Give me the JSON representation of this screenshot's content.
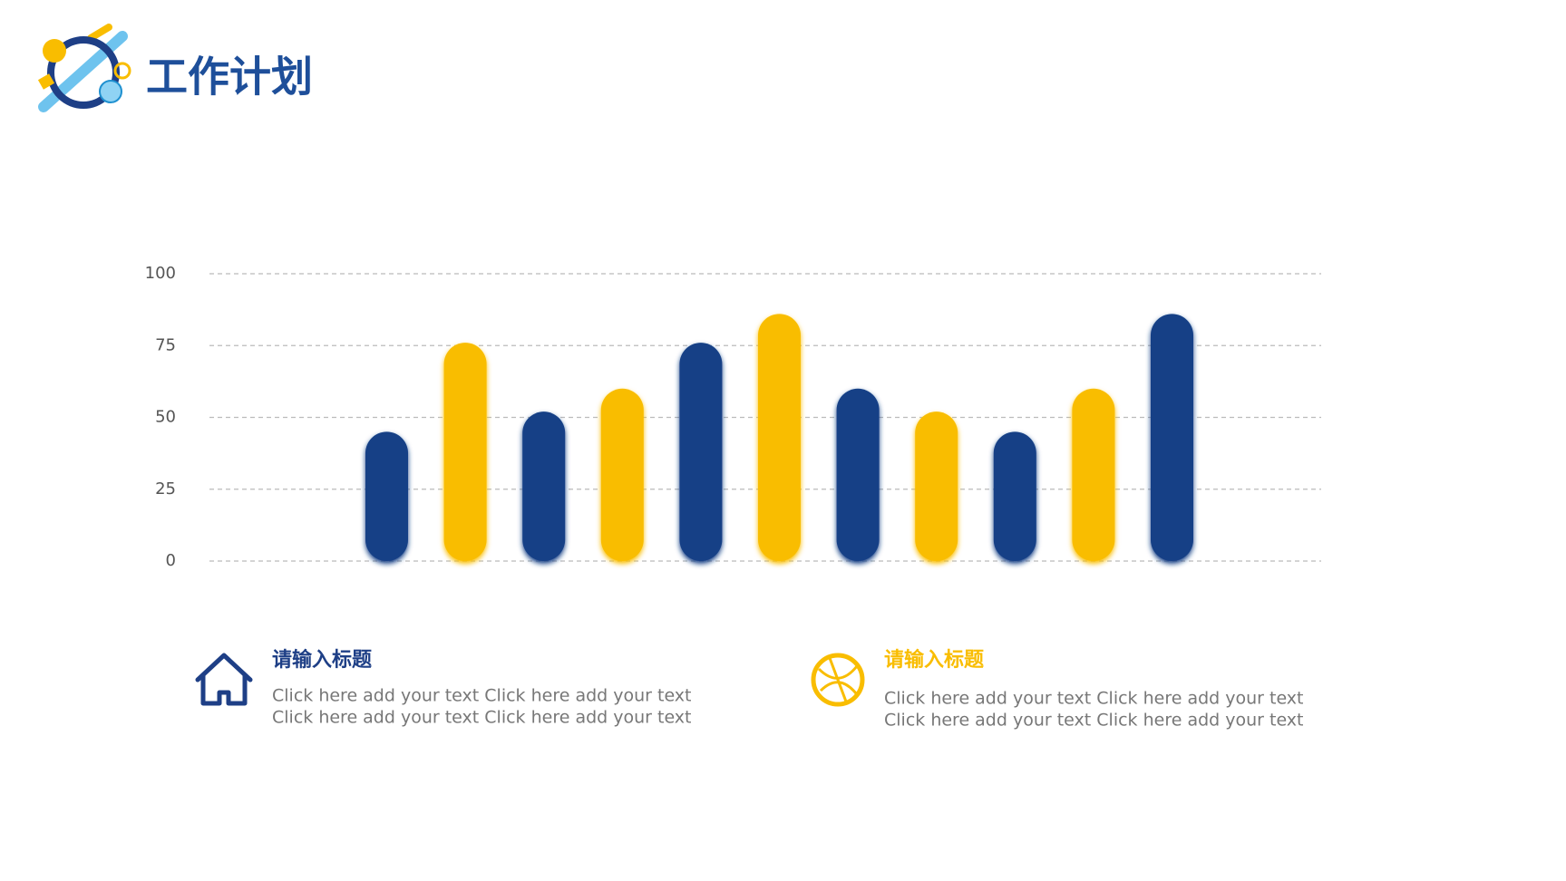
{
  "header": {
    "title": "工作计划"
  },
  "chart_data": {
    "type": "bar",
    "categories": [
      null,
      null,
      null,
      null,
      null,
      null,
      null,
      null,
      null,
      null,
      null
    ],
    "values": [
      45,
      76,
      52,
      60,
      76,
      86,
      60,
      52,
      45,
      60,
      86
    ],
    "colors": [
      "#143f86",
      "#f9bd00",
      "#143f86",
      "#f9bd00",
      "#143f86",
      "#f9bd00",
      "#143f86",
      "#f9bd00",
      "#143f86",
      "#f9bd00",
      "#143f86"
    ],
    "ylim": [
      0,
      100
    ],
    "yticks": [
      0,
      25,
      50,
      75,
      100
    ],
    "grid": true
  },
  "items": [
    {
      "title": "请输入标题",
      "lines": [
        "Click here add your text Click here add your text",
        "Click here add your text Click here add your text"
      ]
    },
    {
      "title": "请输入标题",
      "lines": [
        "Click here add your text Click here add your text",
        "Click here add your text Click here add your text"
      ]
    }
  ]
}
